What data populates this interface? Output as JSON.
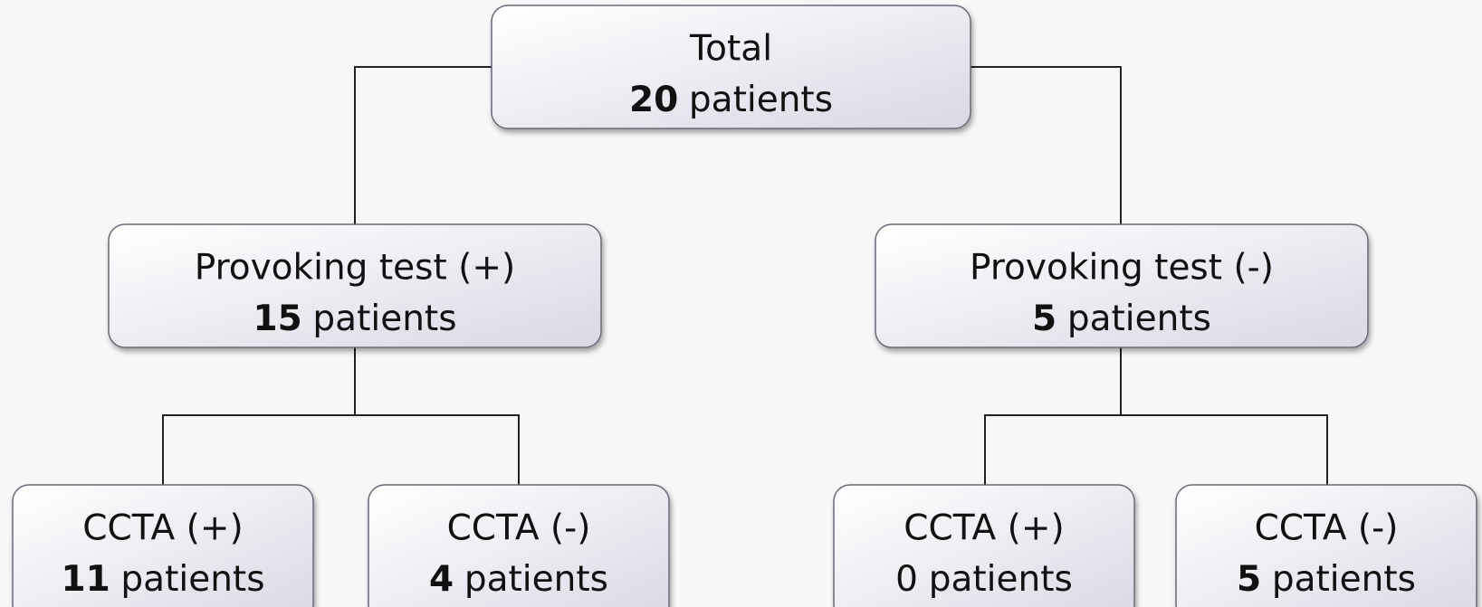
{
  "nodes": [
    {
      "label": "Total",
      "count": 20,
      "unit": "patients",
      "bold": true
    },
    {
      "label": "Provoking test (+)",
      "count": 15,
      "unit": "patients",
      "bold": true
    },
    {
      "label": "Provoking test (-)",
      "count": 5,
      "unit": "patients",
      "bold": true
    },
    {
      "label": "CCTA (+)",
      "count": 11,
      "unit": "patients",
      "bold": true
    },
    {
      "label": "CCTA (-)",
      "count": 4,
      "unit": "patients",
      "bold": true
    },
    {
      "label": "CCTA (+)",
      "count": 0,
      "unit": "patients",
      "bold": false
    },
    {
      "label": "CCTA (-)",
      "count": 5,
      "unit": "patients",
      "bold": true
    }
  ]
}
